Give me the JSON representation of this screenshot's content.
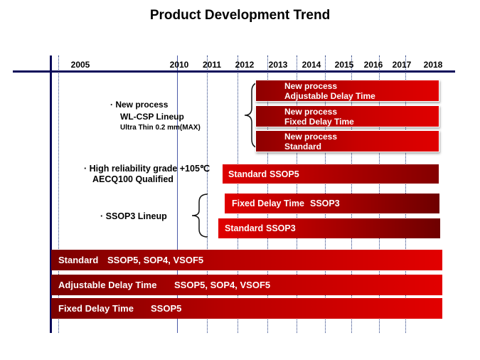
{
  "title": "Product Development Trend",
  "years": [
    "2005",
    "2010",
    "2011",
    "2012",
    "2013",
    "2014",
    "2015",
    "2016",
    "2017",
    "2018"
  ],
  "notes": {
    "wlcsp": {
      "line1": "New process",
      "line2": "WL-CSP Lineup",
      "line3": "Ultra Thin 0.2 mm(MAX)"
    },
    "high_rel": {
      "line1": "High reliability grade +105℃",
      "line2": "AECQ100  Qualified"
    },
    "ssop3": {
      "line1": "SSOP3 Lineup"
    }
  },
  "new_process_bars": [
    {
      "line1": "New process",
      "line2": "Adjustable Delay Time"
    },
    {
      "line1": "New process",
      "line2": "Fixed Delay Time"
    },
    {
      "line1": "New process",
      "line2": "Standard"
    }
  ],
  "mid_bars": [
    {
      "type": "Standard",
      "package": "SSOP5"
    },
    {
      "type": "Fixed Delay Time",
      "package": "SSOP3"
    },
    {
      "type": "Standard",
      "package": "SSOP3"
    }
  ],
  "base_bars": [
    {
      "type": "Standard",
      "package": "SSOP5, SOP4, VSOF5"
    },
    {
      "type": "Adjustable Delay Time",
      "package": "SSOP5, SOP4, VSOF5"
    },
    {
      "type": "Fixed Delay Time",
      "package": "SSOP5"
    }
  ],
  "colors": {
    "axis": "#0a0a5a",
    "bar_dark": "#7a0000",
    "bar_bright": "#e00000"
  }
}
